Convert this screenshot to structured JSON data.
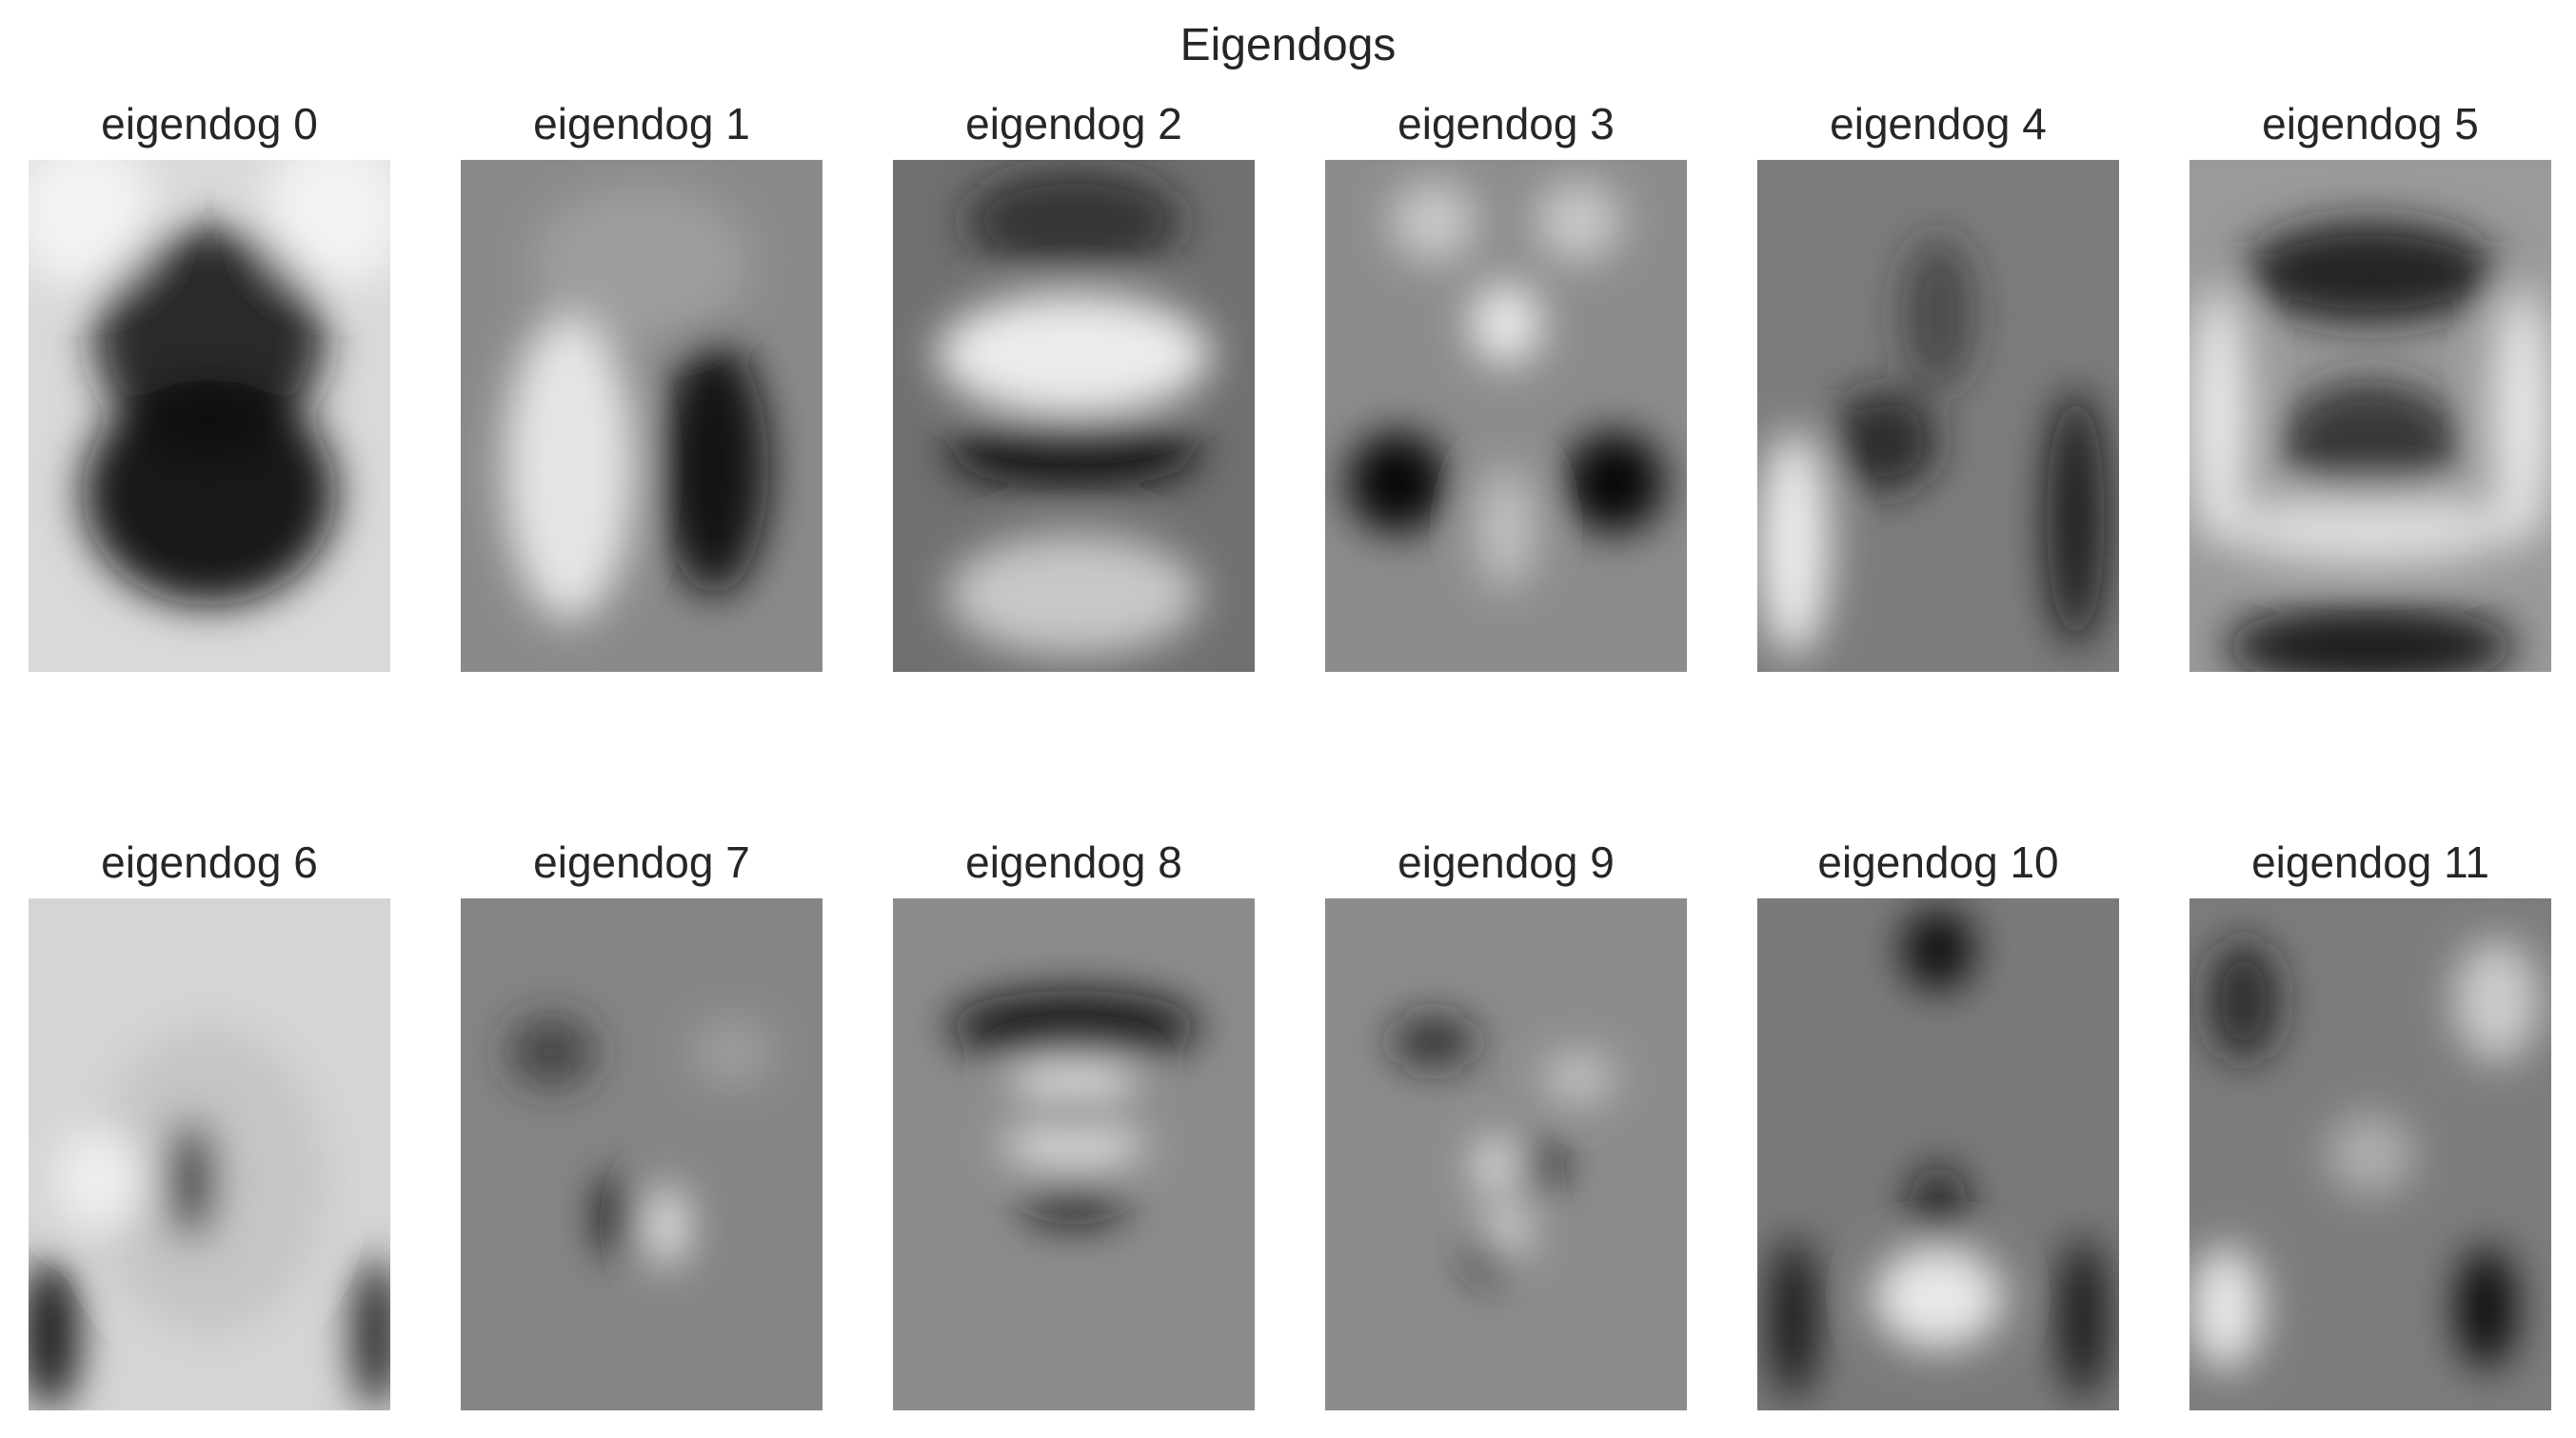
{
  "title": "Eigendogs",
  "panels": [
    {
      "label": "eigendog 0"
    },
    {
      "label": "eigendog 1"
    },
    {
      "label": "eigendog 2"
    },
    {
      "label": "eigendog 3"
    },
    {
      "label": "eigendog 4"
    },
    {
      "label": "eigendog 5"
    },
    {
      "label": "eigendog 6"
    },
    {
      "label": "eigendog 7"
    },
    {
      "label": "eigendog 8"
    },
    {
      "label": "eigendog 9"
    },
    {
      "label": "eigendog 10"
    },
    {
      "label": "eigendog 11"
    }
  ]
}
